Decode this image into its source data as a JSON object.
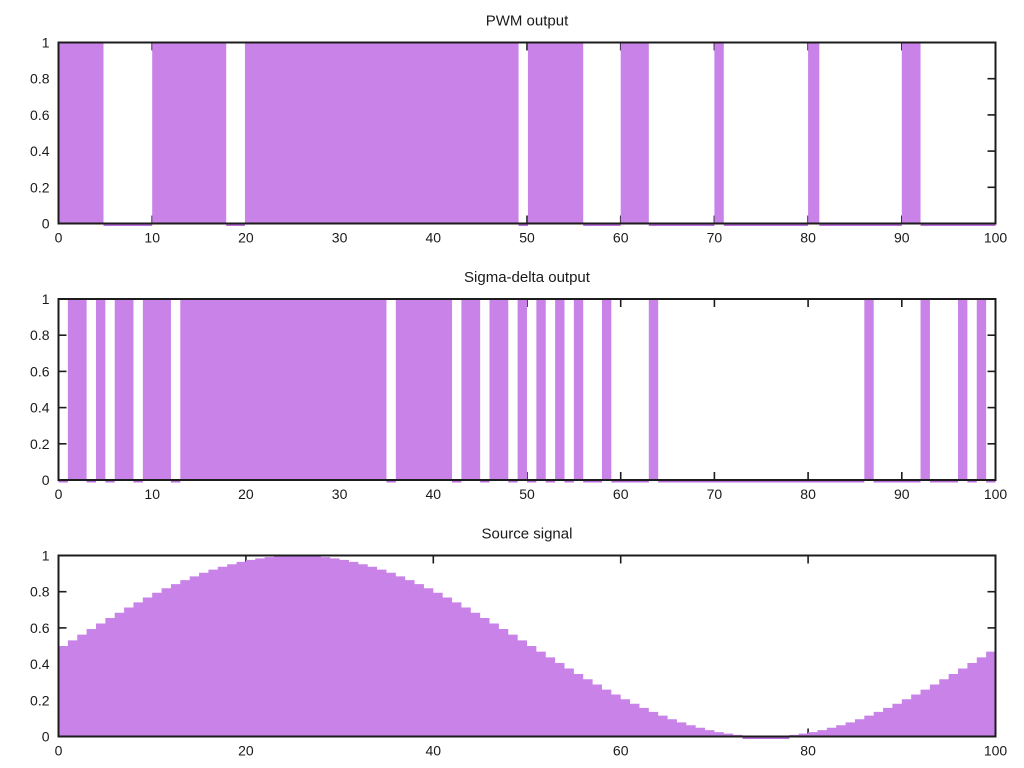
{
  "figure": {
    "background": "#ffffff",
    "series_fill_color": "#c882e8",
    "series_edge_color": "#bb6fdd",
    "frame_color": "#1c1c1c",
    "text_color": "#1a1a1a"
  },
  "chart_data": [
    {
      "type": "bar",
      "title": "PWM output",
      "xlim": [
        0,
        100
      ],
      "ylim": [
        0,
        1
      ],
      "x_ticks": [
        0,
        10,
        20,
        30,
        40,
        50,
        60,
        70,
        80,
        90,
        100
      ],
      "y_ticks": [
        0,
        0.2,
        0.4,
        0.6,
        0.8,
        1
      ],
      "y_tick_labels": [
        "0",
        "0.2",
        "0.4",
        "0.6",
        "0.8",
        "1"
      ],
      "value_high": 1,
      "value_low": 0,
      "on_intervals": [
        [
          0,
          4.8
        ],
        [
          10,
          17.9
        ],
        [
          19.9,
          49.1
        ],
        [
          50.1,
          56
        ],
        [
          60,
          63
        ],
        [
          70,
          71
        ],
        [
          80,
          81.2
        ],
        [
          90,
          92
        ]
      ]
    },
    {
      "type": "bar",
      "title": "Sigma-delta output",
      "xlim": [
        0,
        100
      ],
      "ylim": [
        0,
        1
      ],
      "x_ticks": [
        0,
        10,
        20,
        30,
        40,
        50,
        60,
        70,
        80,
        90,
        100
      ],
      "y_ticks": [
        0,
        0.2,
        0.4,
        0.6,
        0.8,
        1
      ],
      "y_tick_labels": [
        "0",
        "0.2",
        "0.4",
        "0.6",
        "0.8",
        "1"
      ],
      "value_high": 1,
      "value_low": 0,
      "on_intervals": [
        [
          1,
          3
        ],
        [
          4,
          5
        ],
        [
          6,
          8
        ],
        [
          9,
          12
        ],
        [
          13,
          35
        ],
        [
          36,
          42
        ],
        [
          43,
          45
        ],
        [
          46,
          48
        ],
        [
          49,
          50
        ],
        [
          51,
          52
        ],
        [
          53,
          54
        ],
        [
          55,
          56
        ],
        [
          58,
          59
        ],
        [
          63,
          64
        ],
        [
          86,
          87
        ],
        [
          92,
          93
        ],
        [
          96,
          97
        ],
        [
          98,
          99
        ]
      ]
    },
    {
      "type": "area",
      "title": "Source signal",
      "xlim": [
        0,
        100
      ],
      "ylim": [
        0,
        1
      ],
      "x_ticks": [
        0,
        20,
        40,
        60,
        80,
        100
      ],
      "y_ticks": [
        0,
        0.2,
        0.4,
        0.6,
        0.8,
        1
      ],
      "y_tick_labels": [
        "0",
        "0.2",
        "0.4",
        "0.6",
        "0.8",
        "1"
      ],
      "step_width": 1,
      "x_start": 0,
      "values": [
        0.5,
        0.531,
        0.563,
        0.594,
        0.624,
        0.655,
        0.684,
        0.713,
        0.741,
        0.768,
        0.794,
        0.819,
        0.842,
        0.864,
        0.885,
        0.905,
        0.922,
        0.938,
        0.952,
        0.965,
        0.976,
        0.984,
        0.991,
        0.996,
        0.999,
        1.0,
        0.999,
        0.996,
        0.991,
        0.984,
        0.976,
        0.965,
        0.952,
        0.938,
        0.922,
        0.905,
        0.885,
        0.864,
        0.842,
        0.819,
        0.794,
        0.768,
        0.741,
        0.713,
        0.684,
        0.655,
        0.624,
        0.594,
        0.563,
        0.531,
        0.5,
        0.469,
        0.437,
        0.406,
        0.376,
        0.345,
        0.316,
        0.287,
        0.259,
        0.232,
        0.206,
        0.181,
        0.158,
        0.136,
        0.115,
        0.095,
        0.078,
        0.062,
        0.048,
        0.035,
        0.024,
        0.016,
        0.009,
        0.004,
        0.001,
        0.0,
        0.001,
        0.004,
        0.009,
        0.016,
        0.024,
        0.035,
        0.048,
        0.062,
        0.078,
        0.095,
        0.115,
        0.136,
        0.158,
        0.181,
        0.206,
        0.232,
        0.259,
        0.287,
        0.316,
        0.345,
        0.376,
        0.406,
        0.437,
        0.469
      ]
    }
  ]
}
